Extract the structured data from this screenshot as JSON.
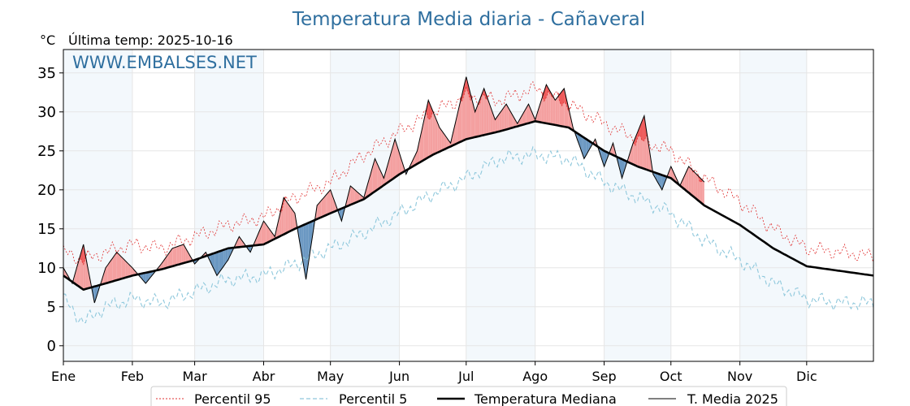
{
  "chart_data": {
    "type": "line",
    "title": "Temperatura Media diaria - Cañaveral",
    "unit_label": "°C",
    "last_update": "Última temp: 2025-10-16",
    "watermark": "WWW.EMBALSES.NET",
    "ylim": [
      -2,
      38
    ],
    "yticks": [
      0,
      5,
      10,
      15,
      20,
      25,
      30,
      35
    ],
    "months": [
      "Ene",
      "Feb",
      "Mar",
      "Abr",
      "May",
      "Jun",
      "Jul",
      "Ago",
      "Sep",
      "Oct",
      "Nov",
      "Dic"
    ],
    "month_start_day": [
      1,
      32,
      60,
      91,
      121,
      152,
      182,
      213,
      244,
      274,
      305,
      335
    ],
    "xlim_days": [
      1,
      365
    ],
    "grid": true,
    "legend_position": "bottom",
    "legend": [
      "Percentil 95",
      "Percentil 5",
      "Temperatura Mediana",
      "T. Media 2025"
    ],
    "colors": {
      "title": "#2f6f9f",
      "p95": "#e03030",
      "p5": "#8fc8dc",
      "median": "#000000",
      "current": "#000000",
      "above_median": "#f4a0a0",
      "above_p95": "#ee5a5a",
      "below_median": "#6b98c2",
      "month_shade": "#eaf2fa"
    },
    "series": [
      {
        "name": "Temperatura Mediana",
        "x": [
          1,
          10,
          20,
          32,
          45,
          60,
          75,
          91,
          105,
          121,
          136,
          152,
          167,
          182,
          197,
          213,
          228,
          244,
          259,
          274,
          289,
          305,
          320,
          335,
          350,
          365
        ],
        "values": [
          9.0,
          7.2,
          8.0,
          9.0,
          9.8,
          11.0,
          12.5,
          13.0,
          15.0,
          17.0,
          18.8,
          22.0,
          24.5,
          26.5,
          27.5,
          28.8,
          28.0,
          25.0,
          23.0,
          21.5,
          18.0,
          15.5,
          12.5,
          10.2,
          9.6,
          9.0
        ]
      },
      {
        "name": "Percentil 95",
        "x": [
          1,
          10,
          20,
          32,
          45,
          60,
          75,
          91,
          105,
          121,
          136,
          152,
          167,
          182,
          197,
          213,
          228,
          244,
          259,
          274,
          289,
          305,
          320,
          335,
          350,
          365
        ],
        "values": [
          12.0,
          11.0,
          12.0,
          13.0,
          12.5,
          14.0,
          15.5,
          16.5,
          19.0,
          21.0,
          24.5,
          27.5,
          30.0,
          32.0,
          31.5,
          33.0,
          31.0,
          28.5,
          26.5,
          25.0,
          21.5,
          18.5,
          15.0,
          12.5,
          12.0,
          11.5
        ]
      },
      {
        "name": "Percentil 5",
        "x": [
          1,
          10,
          20,
          32,
          45,
          60,
          75,
          91,
          105,
          121,
          136,
          152,
          167,
          182,
          197,
          213,
          228,
          244,
          259,
          274,
          289,
          305,
          320,
          335,
          350,
          365
        ],
        "values": [
          6.0,
          3.0,
          5.0,
          6.0,
          5.5,
          7.0,
          8.5,
          9.0,
          10.5,
          12.5,
          14.5,
          17.0,
          19.5,
          21.5,
          24.0,
          24.5,
          24.0,
          21.0,
          19.0,
          17.0,
          13.5,
          11.0,
          8.0,
          6.0,
          5.5,
          5.5
        ]
      },
      {
        "name": "T. Media 2025",
        "x": [
          1,
          5,
          10,
          15,
          20,
          25,
          32,
          38,
          45,
          50,
          55,
          60,
          65,
          70,
          75,
          80,
          85,
          91,
          96,
          100,
          105,
          110,
          115,
          121,
          126,
          130,
          136,
          141,
          145,
          150,
          155,
          160,
          165,
          170,
          175,
          182,
          186,
          190,
          195,
          200,
          205,
          210,
          213,
          218,
          222,
          226,
          230,
          235,
          240,
          244,
          248,
          252,
          257,
          262,
          266,
          270,
          274,
          278,
          282,
          289
        ],
        "values": [
          10.0,
          8.0,
          13.0,
          5.5,
          10.0,
          12.0,
          10.0,
          8.0,
          10.5,
          12.5,
          13.0,
          10.5,
          12.0,
          9.0,
          11.0,
          14.0,
          12.0,
          16.0,
          14.0,
          19.0,
          17.0,
          8.5,
          18.0,
          20.0,
          16.0,
          20.5,
          19.0,
          24.0,
          21.5,
          26.5,
          22.0,
          25.0,
          31.5,
          28.0,
          26.0,
          34.5,
          30.0,
          33.0,
          29.0,
          31.0,
          28.5,
          31.0,
          29.0,
          33.5,
          31.5,
          33.0,
          28.0,
          24.0,
          26.5,
          23.0,
          26.0,
          21.5,
          26.0,
          29.5,
          22.0,
          20.0,
          23.0,
          20.5,
          23.0,
          21.0
        ]
      }
    ]
  }
}
